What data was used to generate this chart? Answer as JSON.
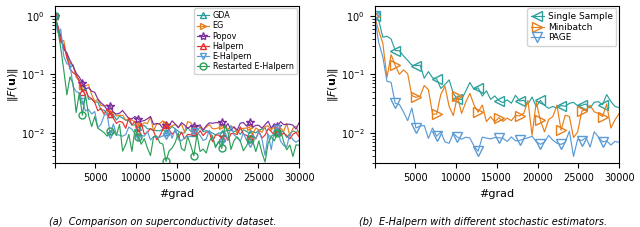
{
  "fig_width": 6.4,
  "fig_height": 2.27,
  "dpi": 100,
  "xlabel": "#grad",
  "ylabel": "$\\|F(\\mathbf{u})\\|$",
  "caption_a": "(a)  Comparison on superconductivity dataset.",
  "caption_b": "(b)  E-Halpern with different stochastic estimators.",
  "colors": {
    "GDA": "#2ca09c",
    "EG": "#e87e1a",
    "Popov": "#7b2f9e",
    "Halpern": "#e83030",
    "E-Halpern": "#5b9bd5",
    "Restarted_E-Halpern": "#2ca05a",
    "Single_Sample": "#2ca09c",
    "Minibatch": "#e87e1a",
    "PAGE": "#5b9bd5"
  },
  "markers": {
    "GDA": "^",
    "EG": ">",
    "Popov": "*",
    "Halpern": "^",
    "E-Halpern": "v",
    "Restarted_E-Halpern": "o",
    "Single_Sample": "<",
    "Minibatch": ">",
    "PAGE": "v"
  }
}
